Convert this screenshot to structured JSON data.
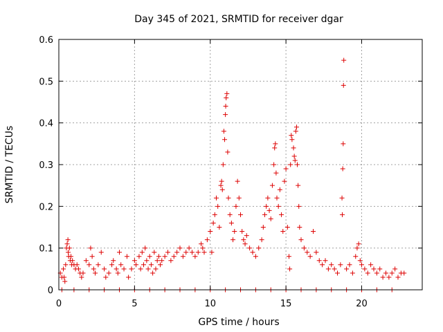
{
  "chart_data": {
    "type": "scatter",
    "title": "Day 345 of 2021, SRMTID for receiver dgar",
    "xlabel": "GPS time / hours",
    "ylabel": "SRMTID / TECUs",
    "xlim": [
      0,
      24
    ],
    "ylim": [
      0,
      0.6
    ],
    "xticks": [
      0,
      5,
      10,
      15,
      20
    ],
    "yticks": [
      0,
      0.1,
      0.2,
      0.3,
      0.4,
      0.5,
      0.6
    ],
    "xtick_labels": [
      "0",
      "5",
      "10",
      "15",
      "20"
    ],
    "ytick_labels": [
      "0",
      "0.1",
      "0.2",
      "0.3",
      "0.4",
      "0.5",
      "0.6"
    ],
    "grid": true,
    "legend": "none",
    "marker_color": "#dd0000",
    "series": [
      {
        "name": "SRMTID",
        "points": [
          [
            0.1,
            0.04
          ],
          [
            0.2,
            0.03
          ],
          [
            0.3,
            0.05
          ],
          [
            0.35,
            0.03
          ],
          [
            0.4,
            0.02
          ],
          [
            0.45,
            0.06
          ],
          [
            0.5,
            0.1
          ],
          [
            0.55,
            0.11
          ],
          [
            0.6,
            0.12
          ],
          [
            0.62,
            0.09
          ],
          [
            0.65,
            0.08
          ],
          [
            0.7,
            0.1
          ],
          [
            0.75,
            0.07
          ],
          [
            0.8,
            0.08
          ],
          [
            0.85,
            0.06
          ],
          [
            0.9,
            0.07
          ],
          [
            1.0,
            0.06
          ],
          [
            1.1,
            0.05
          ],
          [
            1.2,
            0.06
          ],
          [
            1.3,
            0.05
          ],
          [
            1.4,
            0.04
          ],
          [
            1.5,
            0.03
          ],
          [
            1.6,
            0.04
          ],
          [
            1.8,
            0.07
          ],
          [
            2.0,
            0.06
          ],
          [
            2.1,
            0.1
          ],
          [
            2.2,
            0.08
          ],
          [
            2.3,
            0.05
          ],
          [
            2.4,
            0.04
          ],
          [
            2.6,
            0.06
          ],
          [
            2.8,
            0.09
          ],
          [
            3.0,
            0.05
          ],
          [
            3.1,
            0.03
          ],
          [
            3.3,
            0.04
          ],
          [
            3.5,
            0.06
          ],
          [
            3.6,
            0.07
          ],
          [
            3.8,
            0.05
          ],
          [
            3.9,
            0.04
          ],
          [
            4.0,
            0.09
          ],
          [
            4.1,
            0.06
          ],
          [
            4.3,
            0.05
          ],
          [
            4.5,
            0.08
          ],
          [
            4.6,
            0.03
          ],
          [
            4.8,
            0.05
          ],
          [
            5.0,
            0.07
          ],
          [
            5.1,
            0.06
          ],
          [
            5.3,
            0.08
          ],
          [
            5.4,
            0.05
          ],
          [
            5.5,
            0.09
          ],
          [
            5.6,
            0.06
          ],
          [
            5.7,
            0.1
          ],
          [
            5.8,
            0.07
          ],
          [
            5.9,
            0.05
          ],
          [
            6.0,
            0.08
          ],
          [
            6.1,
            0.06
          ],
          [
            6.2,
            0.04
          ],
          [
            6.3,
            0.09
          ],
          [
            6.4,
            0.05
          ],
          [
            6.5,
            0.07
          ],
          [
            6.6,
            0.08
          ],
          [
            6.7,
            0.06
          ],
          [
            6.8,
            0.07
          ],
          [
            7.0,
            0.08
          ],
          [
            7.2,
            0.09
          ],
          [
            7.4,
            0.07
          ],
          [
            7.6,
            0.08
          ],
          [
            7.8,
            0.09
          ],
          [
            8.0,
            0.1
          ],
          [
            8.2,
            0.08
          ],
          [
            8.4,
            0.09
          ],
          [
            8.6,
            0.1
          ],
          [
            8.8,
            0.09
          ],
          [
            9.0,
            0.08
          ],
          [
            9.2,
            0.09
          ],
          [
            9.4,
            0.11
          ],
          [
            9.5,
            0.1
          ],
          [
            9.6,
            0.09
          ],
          [
            9.8,
            0.12
          ],
          [
            10.0,
            0.14
          ],
          [
            10.1,
            0.09
          ],
          [
            10.2,
            0.16
          ],
          [
            10.3,
            0.18
          ],
          [
            10.4,
            0.22
          ],
          [
            10.5,
            0.2
          ],
          [
            10.6,
            0.15
          ],
          [
            10.7,
            0.25
          ],
          [
            10.75,
            0.26
          ],
          [
            10.8,
            0.24
          ],
          [
            10.85,
            0.3
          ],
          [
            10.9,
            0.38
          ],
          [
            10.95,
            0.36
          ],
          [
            11.0,
            0.42
          ],
          [
            11.02,
            0.44
          ],
          [
            11.05,
            0.46
          ],
          [
            11.1,
            0.47
          ],
          [
            11.15,
            0.33
          ],
          [
            11.2,
            0.22
          ],
          [
            11.3,
            0.18
          ],
          [
            11.4,
            0.16
          ],
          [
            11.5,
            0.12
          ],
          [
            11.6,
            0.14
          ],
          [
            11.7,
            0.2
          ],
          [
            11.8,
            0.26
          ],
          [
            11.9,
            0.22
          ],
          [
            12.0,
            0.18
          ],
          [
            12.1,
            0.14
          ],
          [
            12.2,
            0.12
          ],
          [
            12.3,
            0.11
          ],
          [
            12.4,
            0.13
          ],
          [
            12.6,
            0.1
          ],
          [
            12.8,
            0.09
          ],
          [
            13.0,
            0.08
          ],
          [
            13.2,
            0.1
          ],
          [
            13.4,
            0.12
          ],
          [
            13.5,
            0.15
          ],
          [
            13.6,
            0.18
          ],
          [
            13.7,
            0.2
          ],
          [
            13.8,
            0.22
          ],
          [
            13.9,
            0.19
          ],
          [
            14.0,
            0.17
          ],
          [
            14.1,
            0.25
          ],
          [
            14.2,
            0.3
          ],
          [
            14.25,
            0.34
          ],
          [
            14.3,
            0.35
          ],
          [
            14.35,
            0.28
          ],
          [
            14.4,
            0.22
          ],
          [
            14.5,
            0.2
          ],
          [
            14.6,
            0.24
          ],
          [
            14.7,
            0.18
          ],
          [
            14.8,
            0.14
          ],
          [
            14.9,
            0.26
          ],
          [
            15.0,
            0.29
          ],
          [
            15.1,
            0.15
          ],
          [
            15.2,
            0.08
          ],
          [
            15.25,
            0.05
          ],
          [
            15.3,
            0.3
          ],
          [
            15.35,
            0.37
          ],
          [
            15.4,
            0.36
          ],
          [
            15.5,
            0.34
          ],
          [
            15.55,
            0.32
          ],
          [
            15.6,
            0.31
          ],
          [
            15.65,
            0.38
          ],
          [
            15.7,
            0.39
          ],
          [
            15.75,
            0.3
          ],
          [
            15.8,
            0.25
          ],
          [
            15.85,
            0.2
          ],
          [
            15.9,
            0.15
          ],
          [
            16.0,
            0.12
          ],
          [
            16.2,
            0.1
          ],
          [
            16.4,
            0.09
          ],
          [
            16.6,
            0.08
          ],
          [
            16.8,
            0.14
          ],
          [
            17.0,
            0.09
          ],
          [
            17.2,
            0.07
          ],
          [
            17.4,
            0.06
          ],
          [
            17.6,
            0.07
          ],
          [
            17.8,
            0.05
          ],
          [
            18.0,
            0.06
          ],
          [
            18.2,
            0.05
          ],
          [
            18.4,
            0.04
          ],
          [
            18.6,
            0.06
          ],
          [
            18.7,
            0.22
          ],
          [
            18.72,
            0.18
          ],
          [
            18.75,
            0.29
          ],
          [
            18.78,
            0.35
          ],
          [
            18.8,
            0.49
          ],
          [
            18.82,
            0.55
          ],
          [
            19.0,
            0.05
          ],
          [
            19.2,
            0.06
          ],
          [
            19.4,
            0.04
          ],
          [
            19.6,
            0.08
          ],
          [
            19.7,
            0.1
          ],
          [
            19.8,
            0.11
          ],
          [
            19.9,
            0.07
          ],
          [
            20.0,
            0.06
          ],
          [
            20.2,
            0.05
          ],
          [
            20.4,
            0.04
          ],
          [
            20.6,
            0.06
          ],
          [
            20.8,
            0.05
          ],
          [
            21.0,
            0.04
          ],
          [
            21.2,
            0.05
          ],
          [
            21.4,
            0.03
          ],
          [
            21.6,
            0.04
          ],
          [
            21.8,
            0.03
          ],
          [
            22.0,
            0.04
          ],
          [
            22.2,
            0.05
          ],
          [
            22.4,
            0.03
          ],
          [
            22.6,
            0.04
          ],
          [
            22.8,
            0.04
          ],
          [
            0.2,
            0
          ],
          [
            1.0,
            0
          ],
          [
            2.0,
            0
          ],
          [
            3.0,
            0
          ],
          [
            4.0,
            0
          ],
          [
            5.0,
            0
          ],
          [
            6.0,
            0
          ],
          [
            7.0,
            0
          ],
          [
            8.0,
            0
          ],
          [
            9.0,
            0
          ],
          [
            10.0,
            0
          ],
          [
            11.0,
            0
          ],
          [
            12.0,
            0
          ],
          [
            13.0,
            0
          ],
          [
            14.0,
            0
          ],
          [
            15.0,
            0
          ],
          [
            16.0,
            0
          ],
          [
            17.0,
            0
          ],
          [
            18.0,
            0
          ],
          [
            19.0,
            0
          ],
          [
            20.0,
            0
          ],
          [
            21.0,
            0
          ],
          [
            22.0,
            0
          ]
        ]
      }
    ]
  }
}
